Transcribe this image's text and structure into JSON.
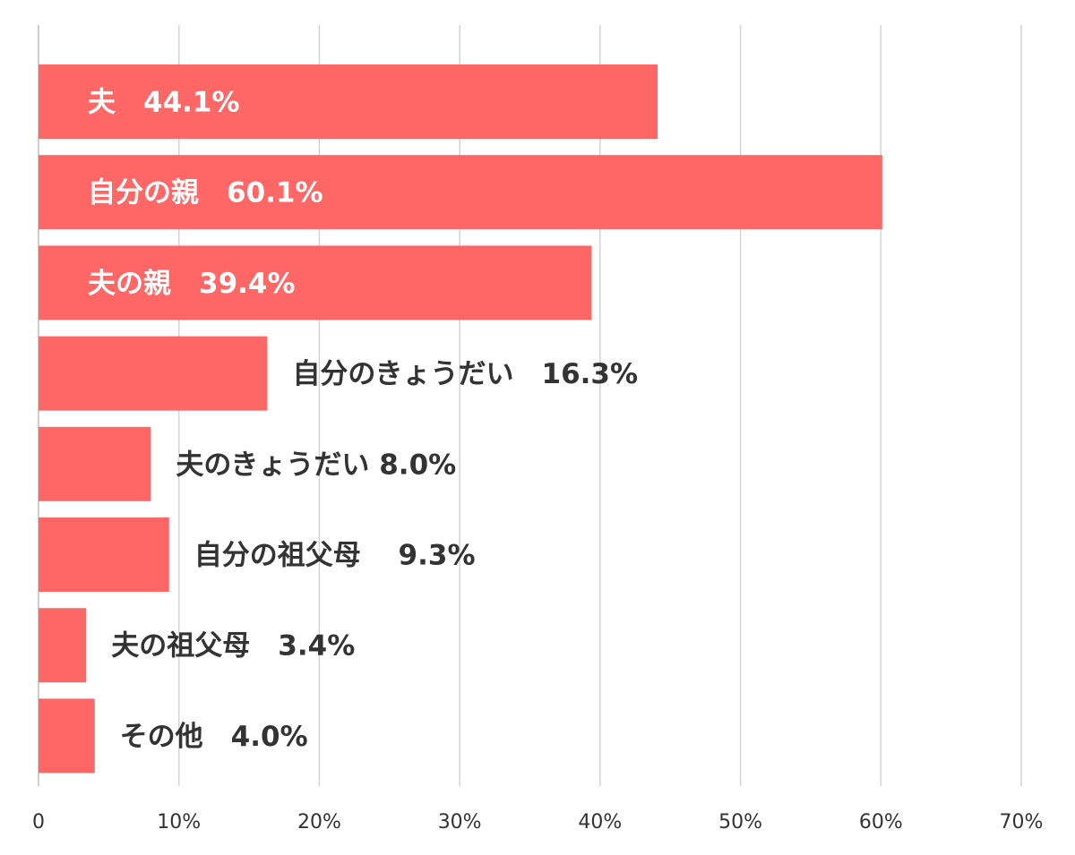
{
  "chart_data": {
    "type": "bar",
    "orientation": "horizontal",
    "title": "",
    "xlabel": "",
    "ylabel": "",
    "xlim": [
      0,
      70
    ],
    "x_ticks": [
      {
        "value": 0,
        "label": "0"
      },
      {
        "value": 10,
        "label": "10%"
      },
      {
        "value": 20,
        "label": "20%"
      },
      {
        "value": 30,
        "label": "30%"
      },
      {
        "value": 40,
        "label": "40%"
      },
      {
        "value": 50,
        "label": "50%"
      },
      {
        "value": 60,
        "label": "60%"
      },
      {
        "value": 70,
        "label": "70%"
      }
    ],
    "grid": true,
    "legend": "none",
    "bar_color": "#ff6666",
    "inside_label_color": "#ffffff",
    "outside_label_color": "#333333",
    "categories": [
      "夫",
      "自分の親",
      "夫の親",
      "自分のきょうだい",
      "夫のきょうだい",
      "自分の祖父母",
      "夫の祖父母",
      "その他"
    ],
    "values": [
      44.1,
      60.1,
      39.4,
      16.3,
      8.0,
      9.3,
      3.4,
      4.0
    ],
    "data_labels": [
      "夫　44.1%",
      "自分の親　60.1%",
      "夫の親　39.4%",
      "自分のきょうだい　16.3%",
      "夫のきょうだい 8.0%",
      "自分の祖父母　 9.3%",
      "夫の祖父母　3.4%",
      "その他　4.0%"
    ],
    "label_inside": [
      true,
      true,
      true,
      false,
      false,
      false,
      false,
      false
    ]
  }
}
